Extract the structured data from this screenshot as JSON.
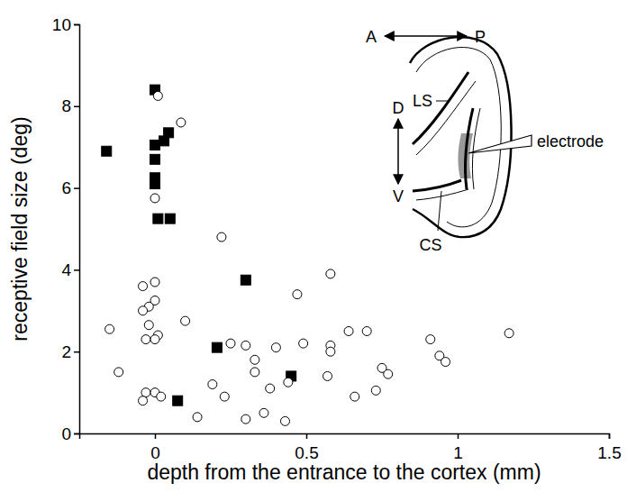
{
  "chart_data": {
    "type": "scatter",
    "x_label": "depth from the entrance to the cortex (mm)",
    "y_label": "receptive field size (deg)",
    "xlim": [
      -0.25,
      1.5
    ],
    "xticks": [
      0,
      0.5,
      1,
      1.5
    ],
    "ylim": [
      0,
      10
    ],
    "yticks": [
      0,
      2,
      4,
      6,
      8,
      10
    ],
    "grid": false,
    "annotations": [
      "A",
      "P",
      "D",
      "V",
      "LS",
      "CS",
      "electrode"
    ],
    "series": [
      {
        "marker": "square",
        "color": "#000000",
        "x": [
          -0.16,
          0,
          0,
          0,
          0,
          0,
          0.03,
          0.045,
          0.01,
          0.05,
          0.3,
          0.205,
          0.45,
          0.075
        ],
        "values": [
          6.9,
          8.4,
          7.05,
          6.7,
          6.25,
          6.1,
          7.15,
          7.35,
          5.25,
          5.25,
          3.75,
          2.1,
          1.4,
          0.8
        ]
      },
      {
        "marker": "circle",
        "color": "#000000",
        "x": [
          0.01,
          0.086,
          0,
          0.22,
          -0.04,
          0,
          0,
          -0.02,
          -0.04,
          -0.02,
          -0.15,
          0.01,
          -0.03,
          0,
          0.1,
          -0.12,
          -0.03,
          0,
          -0.04,
          0.02,
          0.14,
          0.19,
          0.23,
          0.25,
          0.3,
          0.3,
          0.33,
          0.33,
          0.36,
          0.38,
          0.4,
          0.43,
          0.44,
          0.47,
          0.49,
          0.57,
          0.58,
          0.58,
          0.58,
          0.64,
          0.66,
          0.7,
          0.73,
          0.75,
          0.77,
          0.91,
          0.94,
          0.96,
          1.17
        ],
        "values": [
          8.25,
          7.6,
          5.75,
          4.8,
          3.6,
          3.7,
          3.25,
          3.1,
          3.0,
          2.65,
          2.55,
          2.4,
          2.3,
          2.3,
          2.75,
          1.5,
          1.0,
          1.0,
          0.8,
          0.9,
          0.4,
          1.2,
          0.9,
          2.2,
          2.15,
          0.35,
          1.8,
          1.5,
          0.5,
          1.1,
          2.1,
          0.3,
          1.25,
          3.4,
          2.2,
          1.4,
          2.15,
          2.0,
          3.9,
          2.5,
          0.9,
          2.5,
          1.05,
          1.6,
          1.45,
          2.3,
          1.9,
          1.75,
          2.45
        ]
      }
    ]
  }
}
